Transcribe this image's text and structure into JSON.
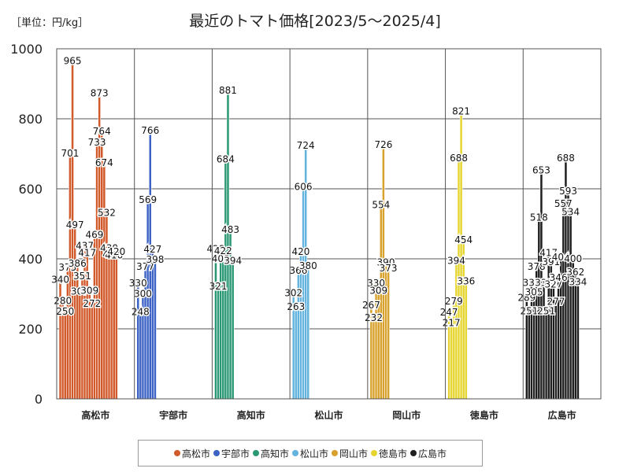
{
  "unit_label": "［単位：円/kg］",
  "chart_data": {
    "type": "bar",
    "title": "最近のトマト価格[2023/5～2025/4]",
    "ylim": [
      0,
      1000
    ],
    "yticks": [
      0,
      200,
      400,
      600,
      800,
      1000
    ],
    "grid": true,
    "legend_position": "bottom",
    "series": [
      {
        "name": "高松市",
        "color": "#d2592a",
        "edge": "#ffffff",
        "values": [
          340,
          280,
          250,
          375,
          701,
          965,
          497,
          386,
          307,
          351,
          437,
          417,
          309,
          272,
          469,
          733,
          873,
          764,
          674,
          532,
          430,
          412,
          410,
          420
        ]
      },
      {
        "name": "宇部市",
        "color": "#3b62c4",
        "edge": "#ffffff",
        "values": [
          330,
          248,
          300,
          377,
          569,
          766,
          427,
          398
        ]
      },
      {
        "name": "高知市",
        "color": "#2a9874",
        "edge": "#ffffff",
        "values": [
          428,
          321,
          400,
          422,
          684,
          881,
          483,
          394
        ]
      },
      {
        "name": "松山市",
        "color": "#62b3de",
        "edge": "#ffffff",
        "values": [
          302,
          263,
          366,
          420,
          606,
          724,
          380
        ]
      },
      {
        "name": "岡山市",
        "color": "#d8a12c",
        "edge": "#ffffff",
        "values": [
          267,
          232,
          330,
          309,
          554,
          726,
          390,
          373
        ]
      },
      {
        "name": "徳島市",
        "color": "#e6d52e",
        "edge": "#ffffff",
        "values": [
          247,
          217,
          279,
          394,
          688,
          821,
          454,
          336
        ]
      },
      {
        "name": "広島市",
        "color": "#1e1e1e",
        "edge": "#ffffff",
        "values": [
          289,
          251,
          332,
          305,
          378,
          518,
          653,
          332,
          251,
          417,
          391,
          327,
          277,
          346,
          404,
          557,
          688,
          593,
          534,
          400,
          362,
          334
        ]
      }
    ]
  }
}
